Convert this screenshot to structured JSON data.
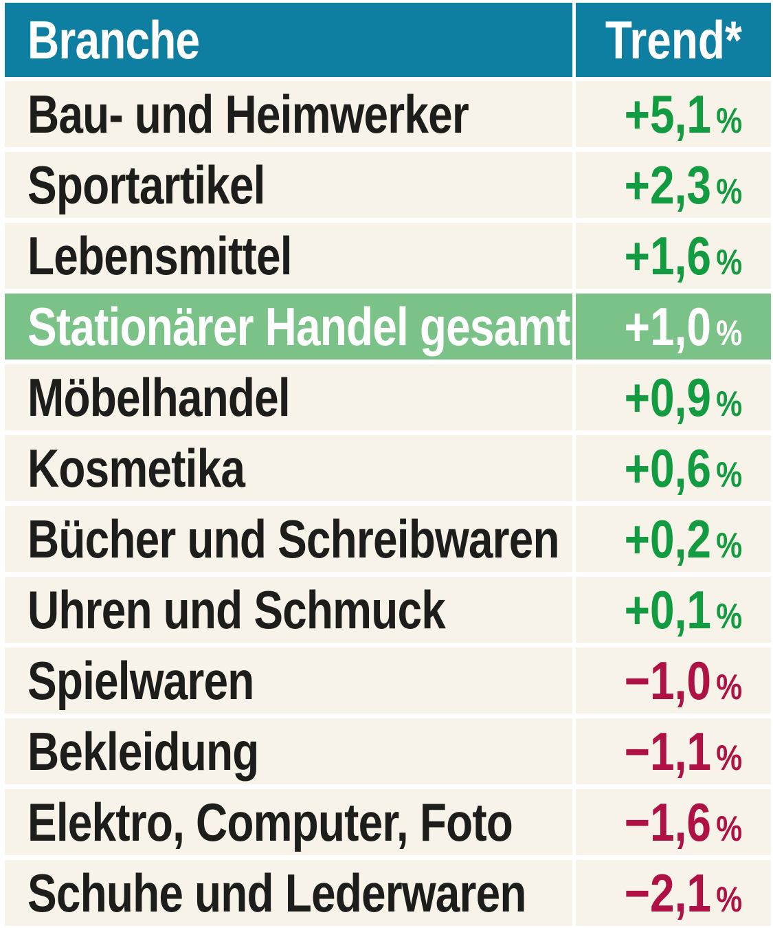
{
  "table": {
    "header": {
      "branche": "Branche",
      "trend": "Trend*"
    },
    "rows": [
      {
        "branche": "Bau- und Heimwerker",
        "value": "+5,1",
        "unit": "%",
        "trend": "positive",
        "highlight": false
      },
      {
        "branche": "Sportartikel",
        "value": "+2,3",
        "unit": "%",
        "trend": "positive",
        "highlight": false
      },
      {
        "branche": "Lebensmittel",
        "value": "+1,6",
        "unit": "%",
        "trend": "positive",
        "highlight": false
      },
      {
        "branche": "Stationärer Handel gesamt",
        "value": "+1,0",
        "unit": "%",
        "trend": "positive",
        "highlight": true
      },
      {
        "branche": "Möbelhandel",
        "value": "+0,9",
        "unit": "%",
        "trend": "positive",
        "highlight": false
      },
      {
        "branche": "Kosmetika",
        "value": "+0,6",
        "unit": "%",
        "trend": "positive",
        "highlight": false
      },
      {
        "branche": "Bücher und Schreibwaren",
        "value": "+0,2",
        "unit": "%",
        "trend": "positive",
        "highlight": false
      },
      {
        "branche": "Uhren und Schmuck",
        "value": "+0,1",
        "unit": "%",
        "trend": "positive",
        "highlight": false
      },
      {
        "branche": "Spielwaren",
        "value": "−1,0",
        "unit": "%",
        "trend": "negative",
        "highlight": false
      },
      {
        "branche": "Bekleidung",
        "value": "−1,1",
        "unit": "%",
        "trend": "negative",
        "highlight": false
      },
      {
        "branche": "Elektro, Computer, Foto",
        "value": "−1,6",
        "unit": "%",
        "trend": "negative",
        "highlight": false
      },
      {
        "branche": "Schuhe und Lederwaren",
        "value": "−2,1",
        "unit": "%",
        "trend": "negative",
        "highlight": false
      }
    ]
  },
  "colors": {
    "header_bg": "#0f7fa1",
    "row_bg": "#f7f3e8",
    "highlight_bg": "#7ac287",
    "positive": "#139b42",
    "negative": "#b01144",
    "text": "#1d1d1b",
    "header_text": "#ffffff"
  },
  "chart_data": {
    "type": "table",
    "title": "",
    "columns": [
      "Branche",
      "Trend*"
    ],
    "rows": [
      [
        "Bau- und Heimwerker",
        "+5,1 %"
      ],
      [
        "Sportartikel",
        "+2,3 %"
      ],
      [
        "Lebensmittel",
        "+1,6 %"
      ],
      [
        "Stationärer Handel gesamt",
        "+1,0 %"
      ],
      [
        "Möbelhandel",
        "+0,9 %"
      ],
      [
        "Kosmetika",
        "+0,6 %"
      ],
      [
        "Bücher und Schreibwaren",
        "+0,2 %"
      ],
      [
        "Uhren und Schmuck",
        "+0,1 %"
      ],
      [
        "Spielwaren",
        "−1,0 %"
      ],
      [
        "Bekleidung",
        "−1,1 %"
      ],
      [
        "Elektro, Computer, Foto",
        "−1,6 %"
      ],
      [
        "Schuhe und Lederwaren",
        "−2,1 %"
      ]
    ],
    "values_numeric": [
      5.1,
      2.3,
      1.6,
      1.0,
      0.9,
      0.6,
      0.2,
      0.1,
      -1.0,
      -1.1,
      -1.6,
      -2.1
    ],
    "unit": "percent",
    "highlighted_row": "Stationärer Handel gesamt",
    "legend_position": "none",
    "notes": "positive values green, negative values dark red, highlighted summary row green background"
  }
}
